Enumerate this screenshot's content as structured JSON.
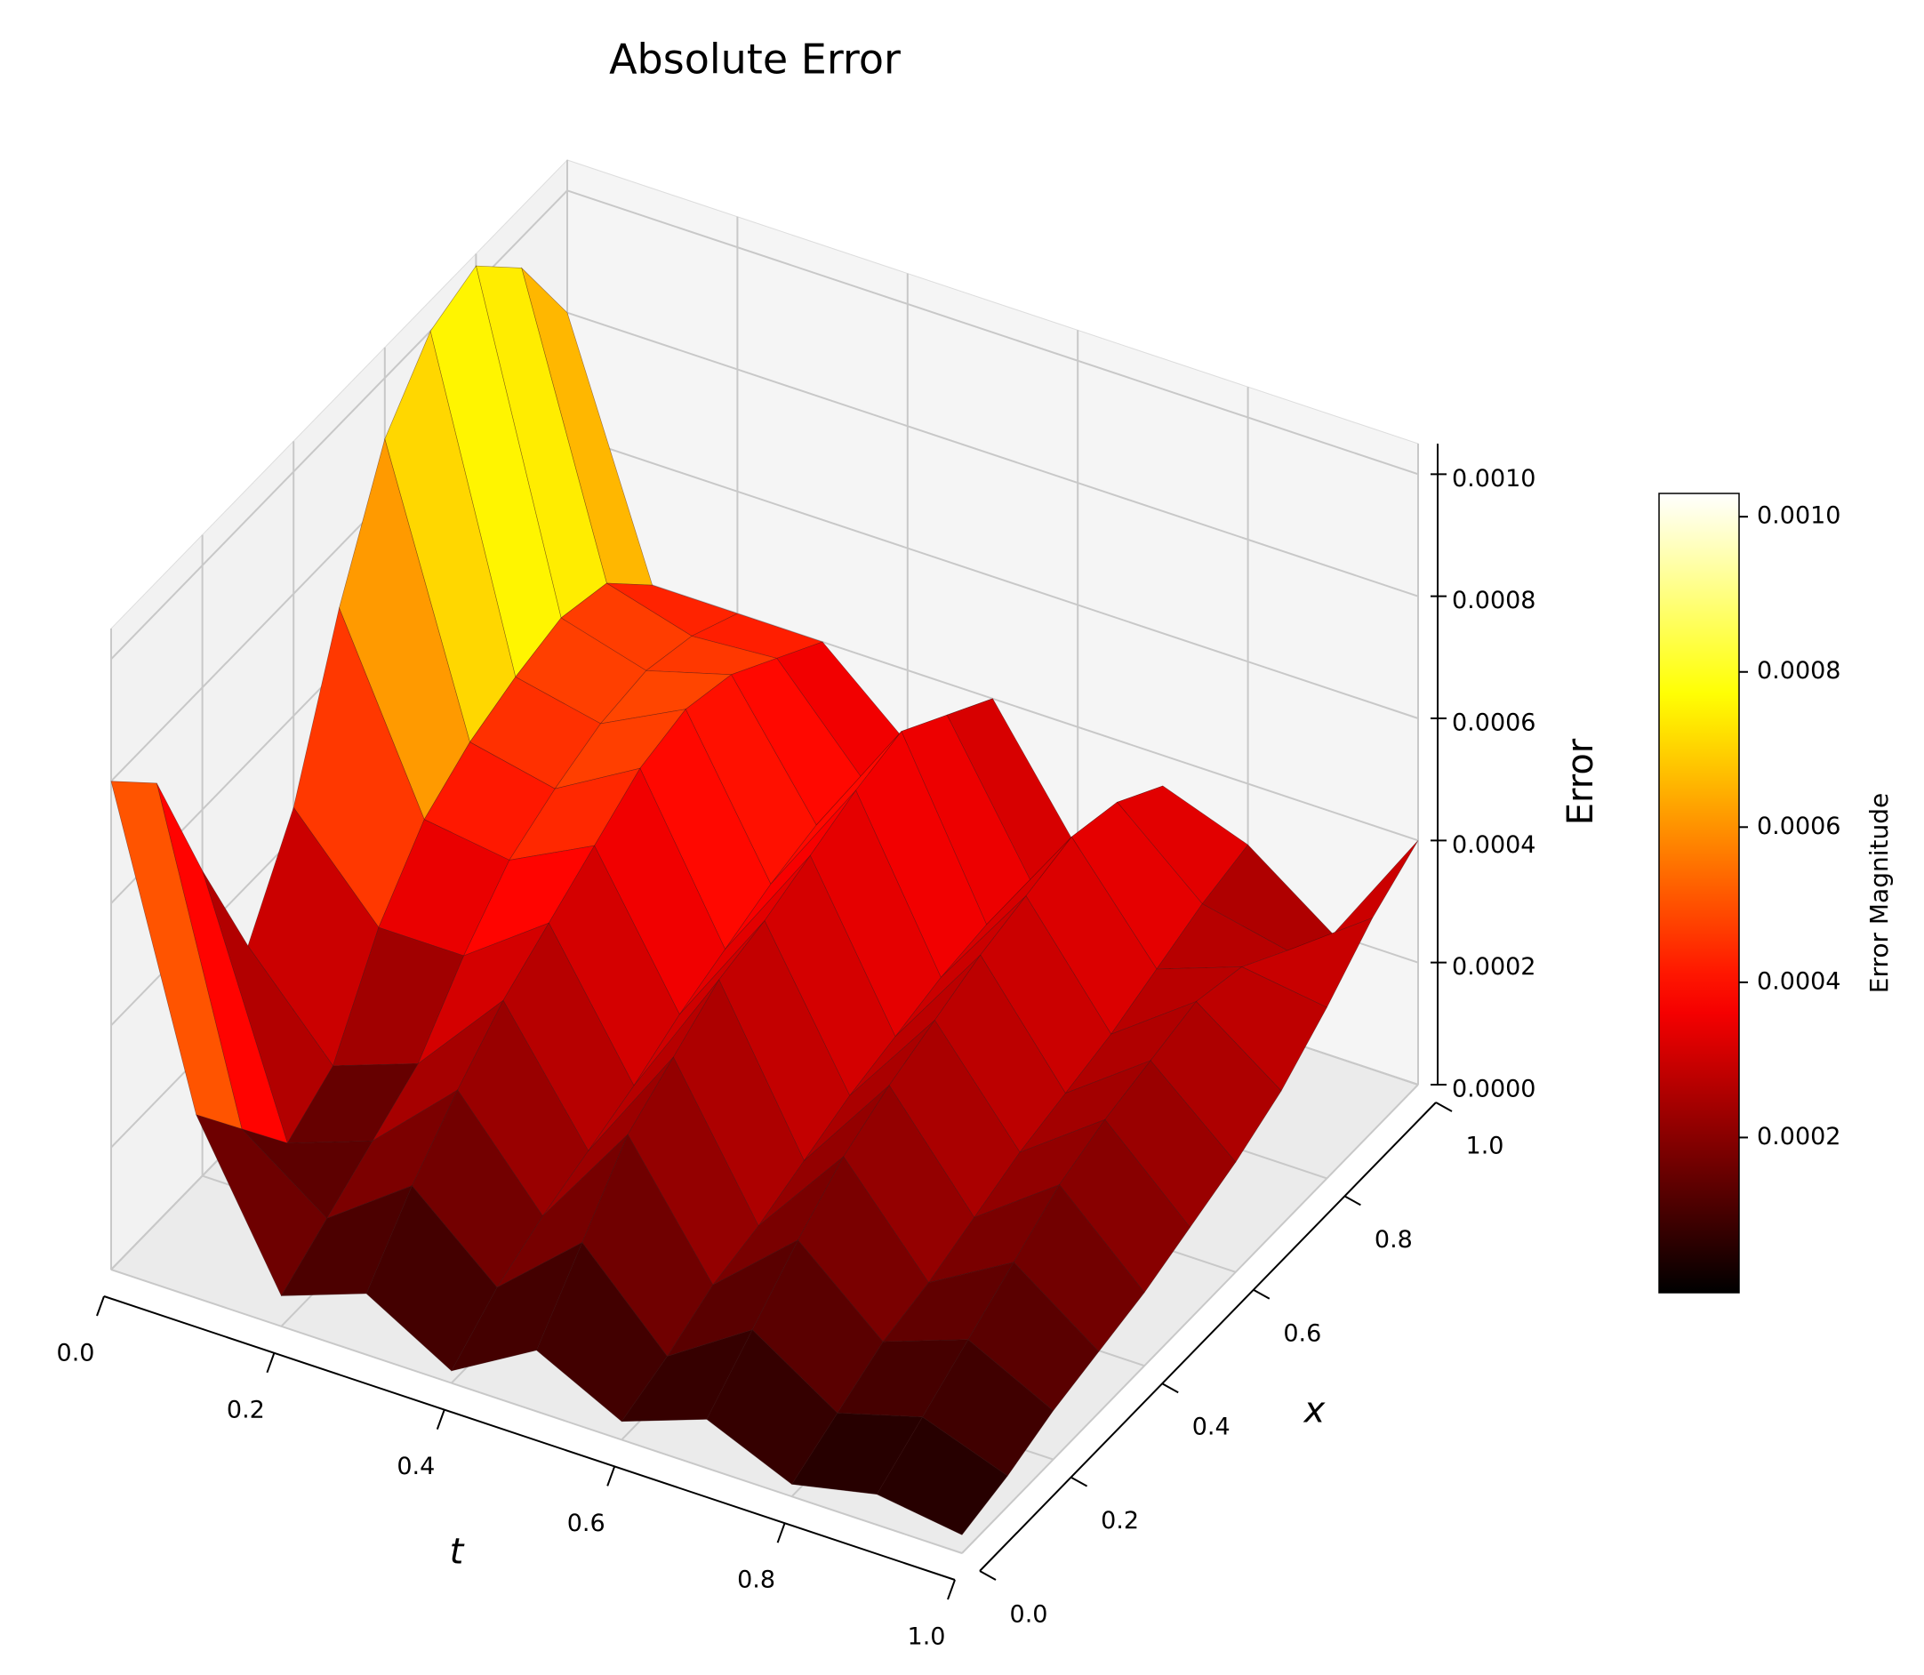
{
  "chart_data": {
    "type": "surface",
    "title": "Absolute Error",
    "xlabel": "t",
    "ylabel": "x",
    "zlabel": "Error",
    "colorbar_label": "Error Magnitude",
    "colormap": "hot",
    "x": [
      0,
      0.1,
      0.2,
      0.3,
      0.4,
      0.5,
      0.6,
      0.7,
      0.8,
      0.9,
      1
    ],
    "y": [
      0,
      0.1,
      0.2,
      0.3,
      0.4,
      0.5,
      0.6,
      0.7,
      0.8,
      0.9,
      1
    ],
    "z": [
      [
        0.0008,
        0.00072,
        0.0005,
        0.0003,
        0.00045,
        0.0007,
        0.0009,
        0.001,
        0.00103,
        0.00095,
        0.0008
      ],
      [
        0.0003,
        0.0002,
        0.0001,
        0.00015,
        0.0003,
        0.0004,
        0.00045,
        0.00048,
        0.0005,
        0.00048,
        0.0004
      ],
      [
        5e-05,
        0.0001,
        0.00015,
        0.0002,
        0.0003,
        0.00038,
        0.00042,
        0.00045,
        0.00046,
        0.00044,
        0.0004
      ],
      [
        0.0001,
        0.0002,
        0.00028,
        0.00035,
        0.0004,
        0.00045,
        0.0005,
        0.00052,
        0.0005,
        0.00045,
        0.0004
      ],
      [
        2e-05,
        8e-05,
        0.00012,
        0.00015,
        0.00018,
        0.00022,
        0.00025,
        0.00028,
        0.0003,
        0.0003,
        0.00028
      ],
      [
        0.0001,
        0.0002,
        0.0003,
        0.00035,
        0.0004,
        0.00042,
        0.00045,
        0.00048,
        0.0005,
        0.00045,
        0.0004
      ],
      [
        3e-05,
        6e-05,
        0.0001,
        0.00012,
        0.00015,
        0.00018,
        0.0002,
        0.00022,
        0.00023,
        0.00022,
        0.0002
      ],
      [
        8e-05,
        0.00015,
        0.00022,
        0.00028,
        0.00032,
        0.00035,
        0.00038,
        0.0004,
        0.00042,
        0.0004,
        0.00035
      ],
      [
        2e-05,
        6e-05,
        0.0001,
        0.00012,
        0.00015,
        0.00018,
        0.0002,
        0.00022,
        0.00025,
        0.00028,
        0.0003
      ],
      [
        5e-05,
        0.0001,
        0.00015,
        0.0002,
        0.00025,
        0.00028,
        0.0003,
        0.00032,
        0.0003,
        0.00025,
        0.0002
      ],
      [
        3e-05,
        5e-05,
        8e-05,
        0.0001,
        0.00012,
        0.00015,
        0.00018,
        0.00022,
        0.00028,
        0.00035,
        0.0004
      ]
    ],
    "xlim": [
      0,
      1
    ],
    "ylim": [
      0,
      1
    ],
    "zlim": [
      0,
      0.00105
    ],
    "xticks": [
      {
        "value": 0,
        "label": "0.0"
      },
      0.2,
      0.4,
      0.6,
      0.8,
      {
        "value": 1,
        "label": "1.0"
      }
    ],
    "yticks": [
      {
        "value": 0,
        "label": "0.0"
      },
      0.2,
      0.4,
      0.6,
      0.8,
      {
        "value": 1,
        "label": "1.0"
      }
    ],
    "zticks": [
      {
        "value": 0,
        "label": "0.0000"
      },
      0.0002,
      0.0004,
      0.0006,
      0.0008,
      {
        "value": 0.001,
        "label": "0.0010"
      }
    ],
    "clim": [
      0,
      0.00103
    ],
    "cticks": [
      0.0002,
      0.0004,
      0.0006,
      0.0008,
      {
        "value": 0.001,
        "label": "0.0010"
      }
    ],
    "grid": true
  }
}
